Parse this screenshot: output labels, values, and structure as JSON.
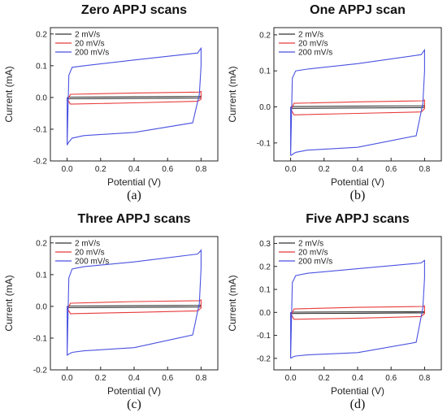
{
  "chart_data": [
    {
      "type": "line",
      "title": "Zero APPJ scans",
      "caption": "(a)",
      "xlabel": "Potential (V)",
      "ylabel": "Current (mA)",
      "xlim": [
        -0.1,
        0.9
      ],
      "ylim": [
        -0.2,
        0.22
      ],
      "xticks": [
        "0.0",
        "0.2",
        "0.4",
        "0.6",
        "0.8"
      ],
      "yticks": [
        "0.2",
        "0.1",
        "0.0",
        "-0.1",
        "-0.2"
      ],
      "legend_position": "top-left",
      "series": [
        {
          "name": "2 mV/s",
          "color": "#333333",
          "x": [
            0.0,
            0.0,
            0.01,
            0.4,
            0.79,
            0.8,
            0.8,
            0.79,
            0.4,
            0.01,
            0.0
          ],
          "y": [
            0.0,
            -0.001,
            0.001,
            0.002,
            0.003,
            0.004,
            0.0,
            -0.002,
            -0.003,
            -0.004,
            0.0
          ]
        },
        {
          "name": "20 mV/s",
          "color": "#e83a3a",
          "x": [
            0.0,
            0.0,
            0.02,
            0.4,
            0.79,
            0.8,
            0.8,
            0.78,
            0.4,
            0.02,
            0.0
          ],
          "y": [
            -0.005,
            -0.01,
            0.01,
            0.014,
            0.017,
            0.019,
            -0.005,
            -0.012,
            -0.017,
            -0.021,
            -0.005
          ]
        },
        {
          "name": "200 mV/s",
          "color": "#4a52e0",
          "x": [
            0.0,
            0.0,
            0.01,
            0.03,
            0.1,
            0.4,
            0.78,
            0.795,
            0.8,
            0.8,
            0.79,
            0.75,
            0.4,
            0.1,
            0.03,
            0.01,
            0.0
          ],
          "y": [
            0.0,
            -0.15,
            0.07,
            0.095,
            0.1,
            0.118,
            0.14,
            0.152,
            0.155,
            0.1,
            0.01,
            -0.08,
            -0.11,
            -0.12,
            -0.128,
            -0.14,
            -0.15
          ]
        }
      ]
    },
    {
      "type": "line",
      "title": "One APPJ  scan",
      "caption": "(b)",
      "xlabel": "Potential (V)",
      "ylabel": "Current (mA)",
      "xlim": [
        -0.1,
        0.9
      ],
      "ylim": [
        -0.15,
        0.22
      ],
      "xticks": [
        "0.0",
        "0.2",
        "0.4",
        "0.6",
        "0.8"
      ],
      "yticks": [
        "0.2",
        "0.1",
        "0.0",
        "-0.1"
      ],
      "legend_position": "top-left",
      "series": [
        {
          "name": "2 mV/s",
          "color": "#333333",
          "x": [
            0.0,
            0.0,
            0.01,
            0.4,
            0.79,
            0.8,
            0.8,
            0.79,
            0.4,
            0.01,
            0.0
          ],
          "y": [
            0.0,
            -0.001,
            0.001,
            0.002,
            0.003,
            0.004,
            0.0,
            -0.002,
            -0.003,
            -0.004,
            0.0
          ]
        },
        {
          "name": "20 mV/s",
          "color": "#e83a3a",
          "x": [
            0.0,
            0.0,
            0.02,
            0.4,
            0.79,
            0.8,
            0.8,
            0.78,
            0.4,
            0.02,
            0.0
          ],
          "y": [
            -0.005,
            -0.012,
            0.01,
            0.014,
            0.017,
            0.019,
            -0.005,
            -0.014,
            -0.018,
            -0.022,
            -0.005
          ]
        },
        {
          "name": "200 mV/s",
          "color": "#4a52e0",
          "x": [
            0.0,
            0.0,
            0.01,
            0.03,
            0.1,
            0.4,
            0.78,
            0.795,
            0.8,
            0.8,
            0.79,
            0.75,
            0.4,
            0.1,
            0.03,
            0.01,
            0.0
          ],
          "y": [
            0.0,
            -0.135,
            0.08,
            0.1,
            0.105,
            0.12,
            0.145,
            0.155,
            0.158,
            0.1,
            0.01,
            -0.08,
            -0.112,
            -0.12,
            -0.126,
            -0.132,
            -0.135
          ]
        }
      ]
    },
    {
      "type": "line",
      "title": "Three APPJ scans",
      "caption": "(c)",
      "xlabel": "Potential (V)",
      "ylabel": "Current (mA)",
      "xlim": [
        -0.1,
        0.9
      ],
      "ylim": [
        -0.2,
        0.22
      ],
      "xticks": [
        "0.0",
        "0.2",
        "0.4",
        "0.6",
        "0.8"
      ],
      "yticks": [
        "0.2",
        "0.1",
        "0.0",
        "-0.1",
        "-0.2"
      ],
      "legend_position": "top-left",
      "series": [
        {
          "name": "2 mV/s",
          "color": "#333333",
          "x": [
            0.0,
            0.0,
            0.01,
            0.4,
            0.79,
            0.8,
            0.8,
            0.79,
            0.4,
            0.01,
            0.0
          ],
          "y": [
            0.0,
            -0.001,
            0.001,
            0.002,
            0.003,
            0.004,
            0.0,
            -0.002,
            -0.003,
            -0.004,
            0.0
          ]
        },
        {
          "name": "20 mV/s",
          "color": "#e83a3a",
          "x": [
            0.0,
            0.0,
            0.02,
            0.4,
            0.79,
            0.8,
            0.8,
            0.78,
            0.4,
            0.02,
            0.0
          ],
          "y": [
            -0.005,
            -0.012,
            0.01,
            0.015,
            0.018,
            0.02,
            -0.005,
            -0.014,
            -0.019,
            -0.023,
            -0.005
          ]
        },
        {
          "name": "200 mV/s",
          "color": "#4a52e0",
          "x": [
            0.0,
            0.0,
            0.01,
            0.03,
            0.1,
            0.4,
            0.78,
            0.795,
            0.8,
            0.8,
            0.79,
            0.75,
            0.4,
            0.1,
            0.03,
            0.01,
            0.0
          ],
          "y": [
            0.0,
            -0.155,
            0.09,
            0.118,
            0.125,
            0.14,
            0.165,
            0.174,
            0.177,
            0.12,
            0.01,
            -0.09,
            -0.13,
            -0.14,
            -0.145,
            -0.15,
            -0.155
          ]
        }
      ]
    },
    {
      "type": "line",
      "title": "Five APPJ  scans",
      "caption": "(d)",
      "xlabel": "Potential (V)",
      "ylabel": "Current (mA)",
      "xlim": [
        -0.1,
        0.9
      ],
      "ylim": [
        -0.25,
        0.33
      ],
      "xticks": [
        "0.0",
        "0.2",
        "0.4",
        "0.6",
        "0.8"
      ],
      "yticks": [
        "0.3",
        "0.2",
        "0.1",
        "0.0",
        "-0.1",
        "-0.2"
      ],
      "legend_position": "top-left",
      "series": [
        {
          "name": "2 mV/s",
          "color": "#333333",
          "x": [
            0.0,
            0.0,
            0.01,
            0.4,
            0.79,
            0.8,
            0.8,
            0.79,
            0.4,
            0.01,
            0.0
          ],
          "y": [
            0.0,
            -0.001,
            0.001,
            0.002,
            0.003,
            0.004,
            0.0,
            -0.002,
            -0.004,
            -0.005,
            0.0
          ]
        },
        {
          "name": "20 mV/s",
          "color": "#e83a3a",
          "x": [
            0.0,
            0.0,
            0.02,
            0.4,
            0.79,
            0.8,
            0.8,
            0.78,
            0.4,
            0.02,
            0.0
          ],
          "y": [
            -0.005,
            -0.02,
            0.015,
            0.022,
            0.026,
            0.028,
            -0.005,
            -0.018,
            -0.025,
            -0.03,
            -0.005
          ]
        },
        {
          "name": "200 mV/s",
          "color": "#4a52e0",
          "x": [
            0.0,
            0.0,
            0.01,
            0.03,
            0.1,
            0.4,
            0.78,
            0.795,
            0.8,
            0.8,
            0.79,
            0.75,
            0.4,
            0.1,
            0.03,
            0.01,
            0.0
          ],
          "y": [
            0.0,
            -0.2,
            0.13,
            0.16,
            0.17,
            0.19,
            0.215,
            0.224,
            0.226,
            0.15,
            0.02,
            -0.13,
            -0.175,
            -0.185,
            -0.19,
            -0.195,
            -0.2
          ]
        }
      ]
    }
  ]
}
